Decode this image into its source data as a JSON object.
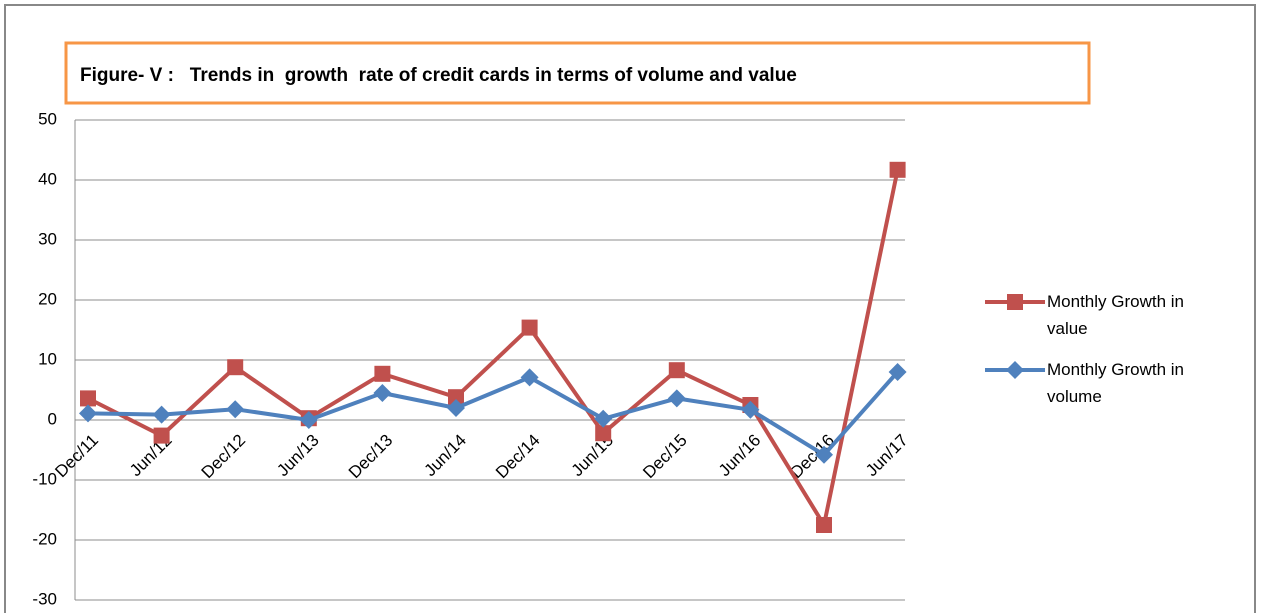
{
  "chart_data": {
    "type": "line",
    "title": "Figure- V :   Trends in  growth  rate of credit cards in terms of volume and value",
    "categories": [
      "Dec/11",
      "Jun/12",
      "Dec/12",
      "Jun/13",
      "Dec/13",
      "Jun/14",
      "Dec/14",
      "Jun/15",
      "Dec/15",
      "Jun/16",
      "Dec/16",
      "Jun/17"
    ],
    "series": [
      {
        "name": "Monthly Growth in value",
        "color": "#c0504d",
        "marker": "square",
        "values": [
          3.6,
          -2.6,
          8.8,
          0.3,
          7.7,
          3.8,
          15.4,
          -2.2,
          8.3,
          2.5,
          -17.5,
          41.7
        ]
      },
      {
        "name": "Monthly Growth in volume",
        "color": "#4f81bd",
        "marker": "diamond",
        "values": [
          1.1,
          0.9,
          1.8,
          0.0,
          4.5,
          2.0,
          7.1,
          0.2,
          3.6,
          1.7,
          -5.8,
          8.0
        ]
      }
    ],
    "ylim": [
      -30,
      50
    ],
    "yticks": [
      -30,
      -20,
      -10,
      0,
      10,
      20,
      30,
      40,
      50
    ],
    "grid": true,
    "legend": "right"
  }
}
